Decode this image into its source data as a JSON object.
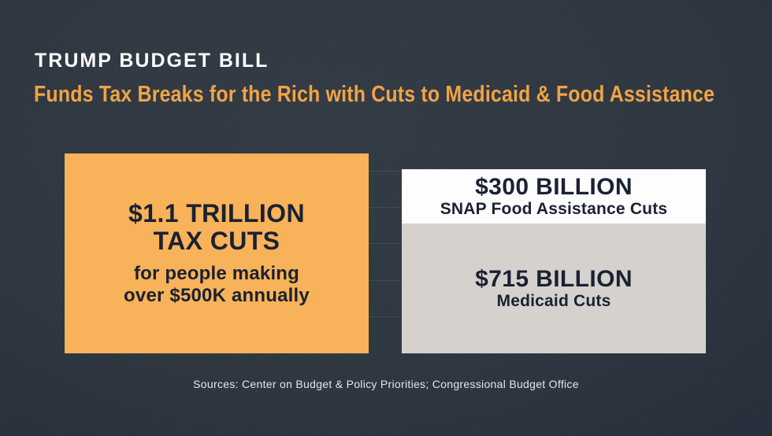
{
  "header": {
    "kicker": "TRUMP BUDGET BILL",
    "headline": "Funds Tax Breaks for the Rich with Cuts to Medicaid & Food Assistance"
  },
  "footer": {
    "source": "Sources: Center on Budget & Policy Priorities; Congressional Budget Office"
  },
  "colors": {
    "background_center": "#2f3842",
    "background_edge": "#19222f",
    "headline_orange": "#f1a346",
    "tax_bar_orange": "#f8b259",
    "snap_bar_white": "#fdfdfd",
    "medicaid_bar_gray": "#d5d2ce",
    "bar_text_navy": "#1a2132",
    "title_white": "#ffffff",
    "gridline": "rgba(235,240,245,0.09)",
    "source_text": "#e3e6ea"
  },
  "chart_data": {
    "type": "bar",
    "variant": "stacked-column-comparison",
    "unit": "USD billions",
    "ylim": [
      0,
      1100
    ],
    "gridline_step": 200,
    "grid": true,
    "legend": false,
    "value_axis_visible": false,
    "columns": [
      {
        "name": "tax-cuts",
        "segments": [
          {
            "value": 1100,
            "label_line1": "$1.1 TRILLION",
            "label_line2": "TAX CUTS",
            "sublabel_line1": "for people making",
            "sublabel_line2": "over $500K annually",
            "color": "#f8b259"
          }
        ]
      },
      {
        "name": "program-cuts",
        "segments": [
          {
            "value": 300,
            "label": "$300 BILLION",
            "sublabel": "SNAP Food Assistance Cuts",
            "color": "#fdfdfd"
          },
          {
            "value": 715,
            "label": "$715 BILLION",
            "sublabel": "Medicaid Cuts",
            "color": "#d5d2ce"
          }
        ]
      }
    ]
  }
}
